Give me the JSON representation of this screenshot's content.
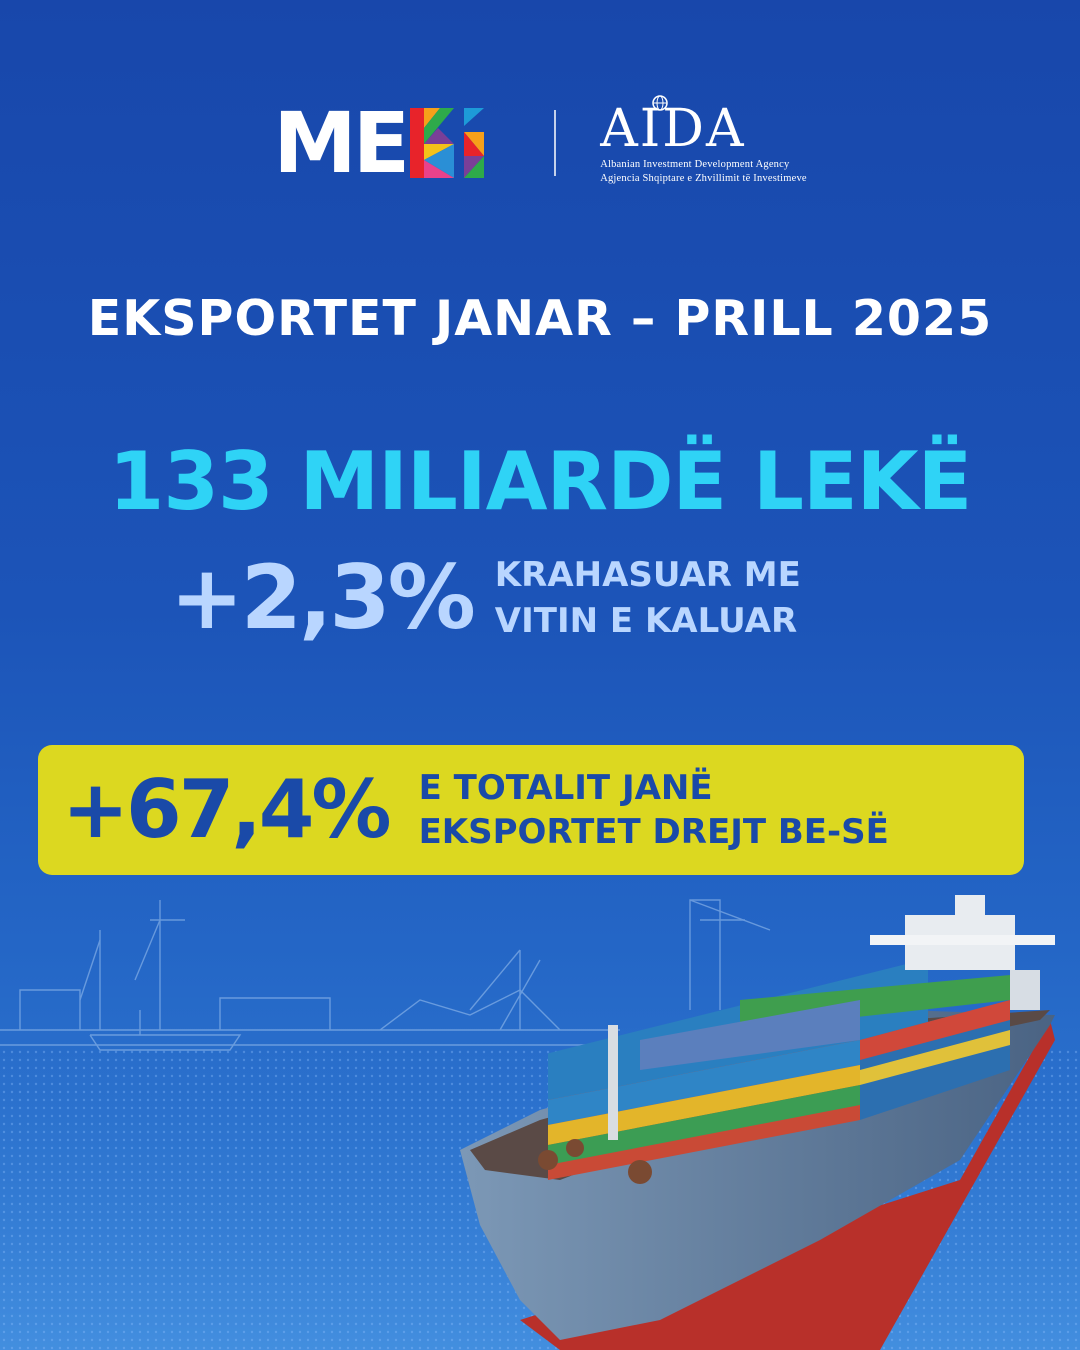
{
  "logos": {
    "meki_text": "ME",
    "aida_name": "AIDA",
    "aida_sub_en": "Albanian Investment Development Agency",
    "aida_sub_sq": "Agjencia Shqiptare e Zhvillimit të Investimeve"
  },
  "headline": "EKSPORTET JANAR – PRILL 2025",
  "total": "133 MILIARDË LEKË",
  "growth": {
    "value": "+2,3%",
    "line1": "KRAHASUAR ME",
    "line2": "VITIN E KALUAR"
  },
  "eu_share": {
    "value": "+67,4%",
    "line1": "E TOTALIT JANË",
    "line2": "EKSPORTET DREJT BE-SË"
  },
  "colors": {
    "background": "#1c54b8",
    "headline": "#ffffff",
    "total": "#2fd3f6",
    "growth": "#b9d6ff",
    "eu_box": "#dcd820",
    "eu_text": "#1a4aa8"
  }
}
